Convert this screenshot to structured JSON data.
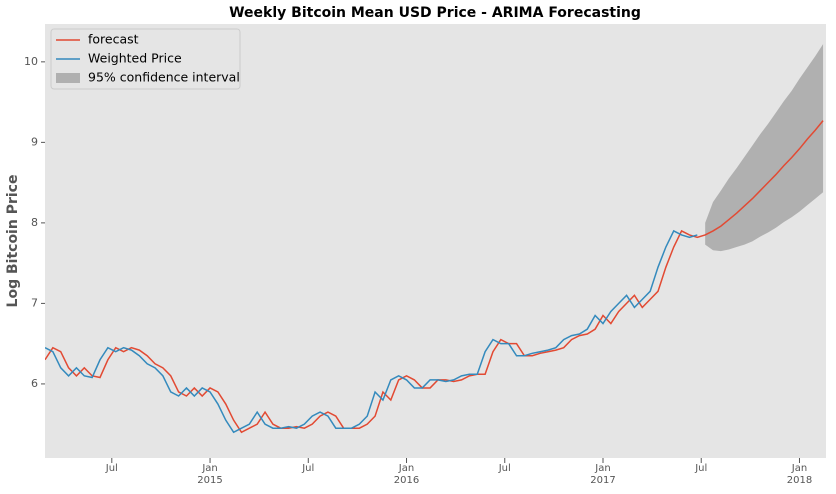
{
  "chart_data": {
    "type": "line",
    "title": "Weekly Bitcoin Mean USD Price - ARIMA Forecasting",
    "y_label": "Log Bitcoin Price",
    "xlim": [
      2014.16,
      2018.135
    ],
    "ylim": [
      5.08,
      10.47
    ],
    "yticks": [
      6,
      7,
      8,
      9,
      10
    ],
    "xticks": [
      {
        "value": 2014.5,
        "label": "Jul"
      },
      {
        "value": 2015,
        "label": "Jan\n2015"
      },
      {
        "value": 2015.5,
        "label": "Jul"
      },
      {
        "value": 2016,
        "label": "Jan\n2016"
      },
      {
        "value": 2016.5,
        "label": "Jul"
      },
      {
        "value": 2017,
        "label": "Jan\n2017"
      },
      {
        "value": 2017.5,
        "label": "Jul"
      },
      {
        "value": 2018,
        "label": "Jan\n2018"
      }
    ],
    "grid": false,
    "legend": "upper left",
    "x": [
      2014.16,
      2014.2,
      2014.24,
      2014.28,
      2014.32,
      2014.36,
      2014.4,
      2014.44,
      2014.48,
      2014.52,
      2014.56,
      2014.6,
      2014.64,
      2014.68,
      2014.72,
      2014.76,
      2014.8,
      2014.84,
      2014.88,
      2014.92,
      2014.96,
      2015.0,
      2015.04,
      2015.08,
      2015.12,
      2015.16,
      2015.2,
      2015.24,
      2015.28,
      2015.32,
      2015.36,
      2015.4,
      2015.44,
      2015.48,
      2015.52,
      2015.56,
      2015.6,
      2015.64,
      2015.68,
      2015.72,
      2015.76,
      2015.8,
      2015.84,
      2015.88,
      2015.92,
      2015.96,
      2016.0,
      2016.04,
      2016.08,
      2016.12,
      2016.16,
      2016.2,
      2016.24,
      2016.28,
      2016.32,
      2016.36,
      2016.4,
      2016.44,
      2016.48,
      2016.52,
      2016.56,
      2016.6,
      2016.64,
      2016.68,
      2016.72,
      2016.76,
      2016.8,
      2016.84,
      2016.88,
      2016.92,
      2016.96,
      2017.0,
      2017.04,
      2017.08,
      2017.12,
      2017.16,
      2017.2,
      2017.24,
      2017.28,
      2017.32,
      2017.36,
      2017.4,
      2017.44,
      2017.48,
      2017.52,
      2017.56,
      2017.6,
      2017.64,
      2017.68,
      2017.72,
      2017.76,
      2017.8,
      2017.84,
      2017.88,
      2017.92,
      2017.96,
      2018.0,
      2018.04,
      2018.08,
      2018.12
    ],
    "series": [
      {
        "name": "forecast",
        "color": "#e24a33",
        "values": [
          6.3,
          6.45,
          6.4,
          6.2,
          6.1,
          6.2,
          6.1,
          6.08,
          6.3,
          6.45,
          6.4,
          6.45,
          6.42,
          6.35,
          6.25,
          6.2,
          6.1,
          5.9,
          5.85,
          5.95,
          5.85,
          5.95,
          5.9,
          5.75,
          5.55,
          5.4,
          5.45,
          5.5,
          5.65,
          5.5,
          5.45,
          5.45,
          5.47,
          5.45,
          5.5,
          5.6,
          5.65,
          5.6,
          5.45,
          5.45,
          5.45,
          5.5,
          5.6,
          5.9,
          5.8,
          6.05,
          6.1,
          6.05,
          5.95,
          5.95,
          6.05,
          6.05,
          6.03,
          6.05,
          6.1,
          6.12,
          6.12,
          6.4,
          6.55,
          6.5,
          6.5,
          6.35,
          6.35,
          6.38,
          6.4,
          6.42,
          6.45,
          6.55,
          6.6,
          6.62,
          6.68,
          6.85,
          6.75,
          6.9,
          7.0,
          7.1,
          6.95,
          7.05,
          7.15,
          7.45,
          7.7,
          7.9,
          7.85,
          7.82,
          7.85,
          7.9,
          7.96,
          8.04,
          8.12,
          8.21,
          8.3,
          8.4,
          8.5,
          8.6,
          8.71,
          8.81,
          8.92,
          9.04,
          9.15,
          9.27
        ]
      },
      {
        "name": "Weighted Price",
        "color": "#348abd",
        "values": [
          6.45,
          6.4,
          6.2,
          6.1,
          6.2,
          6.1,
          6.08,
          6.3,
          6.45,
          6.4,
          6.45,
          6.42,
          6.35,
          6.25,
          6.2,
          6.1,
          5.9,
          5.85,
          5.95,
          5.85,
          5.95,
          5.9,
          5.75,
          5.55,
          5.4,
          5.45,
          5.5,
          5.65,
          5.5,
          5.45,
          5.45,
          5.47,
          5.45,
          5.5,
          5.6,
          5.65,
          5.6,
          5.45,
          5.45,
          5.45,
          5.5,
          5.6,
          5.9,
          5.8,
          6.05,
          6.1,
          6.05,
          5.95,
          5.95,
          6.05,
          6.05,
          6.03,
          6.05,
          6.1,
          6.12,
          6.12,
          6.4,
          6.55,
          6.5,
          6.5,
          6.35,
          6.35,
          6.38,
          6.4,
          6.42,
          6.45,
          6.55,
          6.6,
          6.62,
          6.68,
          6.85,
          6.75,
          6.9,
          7.0,
          7.1,
          6.95,
          7.05,
          7.15,
          7.45,
          7.7,
          7.9,
          7.85,
          7.82,
          7.85,
          null,
          null,
          null,
          null,
          null,
          null,
          null,
          null,
          null,
          null,
          null,
          null,
          null,
          null,
          null,
          null
        ]
      }
    ],
    "band": {
      "name": "95% confidence interval",
      "color": "#b0b0b0",
      "upper": [
        null,
        null,
        null,
        null,
        null,
        null,
        null,
        null,
        null,
        null,
        null,
        null,
        null,
        null,
        null,
        null,
        null,
        null,
        null,
        null,
        null,
        null,
        null,
        null,
        null,
        null,
        null,
        null,
        null,
        null,
        null,
        null,
        null,
        null,
        null,
        null,
        null,
        null,
        null,
        null,
        null,
        null,
        null,
        null,
        null,
        null,
        null,
        null,
        null,
        null,
        null,
        null,
        null,
        null,
        null,
        null,
        null,
        null,
        null,
        null,
        null,
        null,
        null,
        null,
        null,
        null,
        null,
        null,
        null,
        null,
        null,
        null,
        null,
        null,
        null,
        null,
        null,
        null,
        null,
        null,
        null,
        null,
        null,
        null,
        8.0,
        8.26,
        8.4,
        8.55,
        8.68,
        8.82,
        8.96,
        9.1,
        9.23,
        9.37,
        9.51,
        9.64,
        9.79,
        9.93,
        10.07,
        10.22
      ],
      "lower": [
        null,
        null,
        null,
        null,
        null,
        null,
        null,
        null,
        null,
        null,
        null,
        null,
        null,
        null,
        null,
        null,
        null,
        null,
        null,
        null,
        null,
        null,
        null,
        null,
        null,
        null,
        null,
        null,
        null,
        null,
        null,
        null,
        null,
        null,
        null,
        null,
        null,
        null,
        null,
        null,
        null,
        null,
        null,
        null,
        null,
        null,
        null,
        null,
        null,
        null,
        null,
        null,
        null,
        null,
        null,
        null,
        null,
        null,
        null,
        null,
        null,
        null,
        null,
        null,
        null,
        null,
        null,
        null,
        null,
        null,
        null,
        null,
        null,
        null,
        null,
        null,
        null,
        null,
        null,
        null,
        null,
        null,
        null,
        null,
        7.73,
        7.66,
        7.65,
        7.67,
        7.7,
        7.73,
        7.77,
        7.83,
        7.88,
        7.94,
        8.01,
        8.07,
        8.14,
        8.22,
        8.3,
        8.38
      ]
    }
  }
}
